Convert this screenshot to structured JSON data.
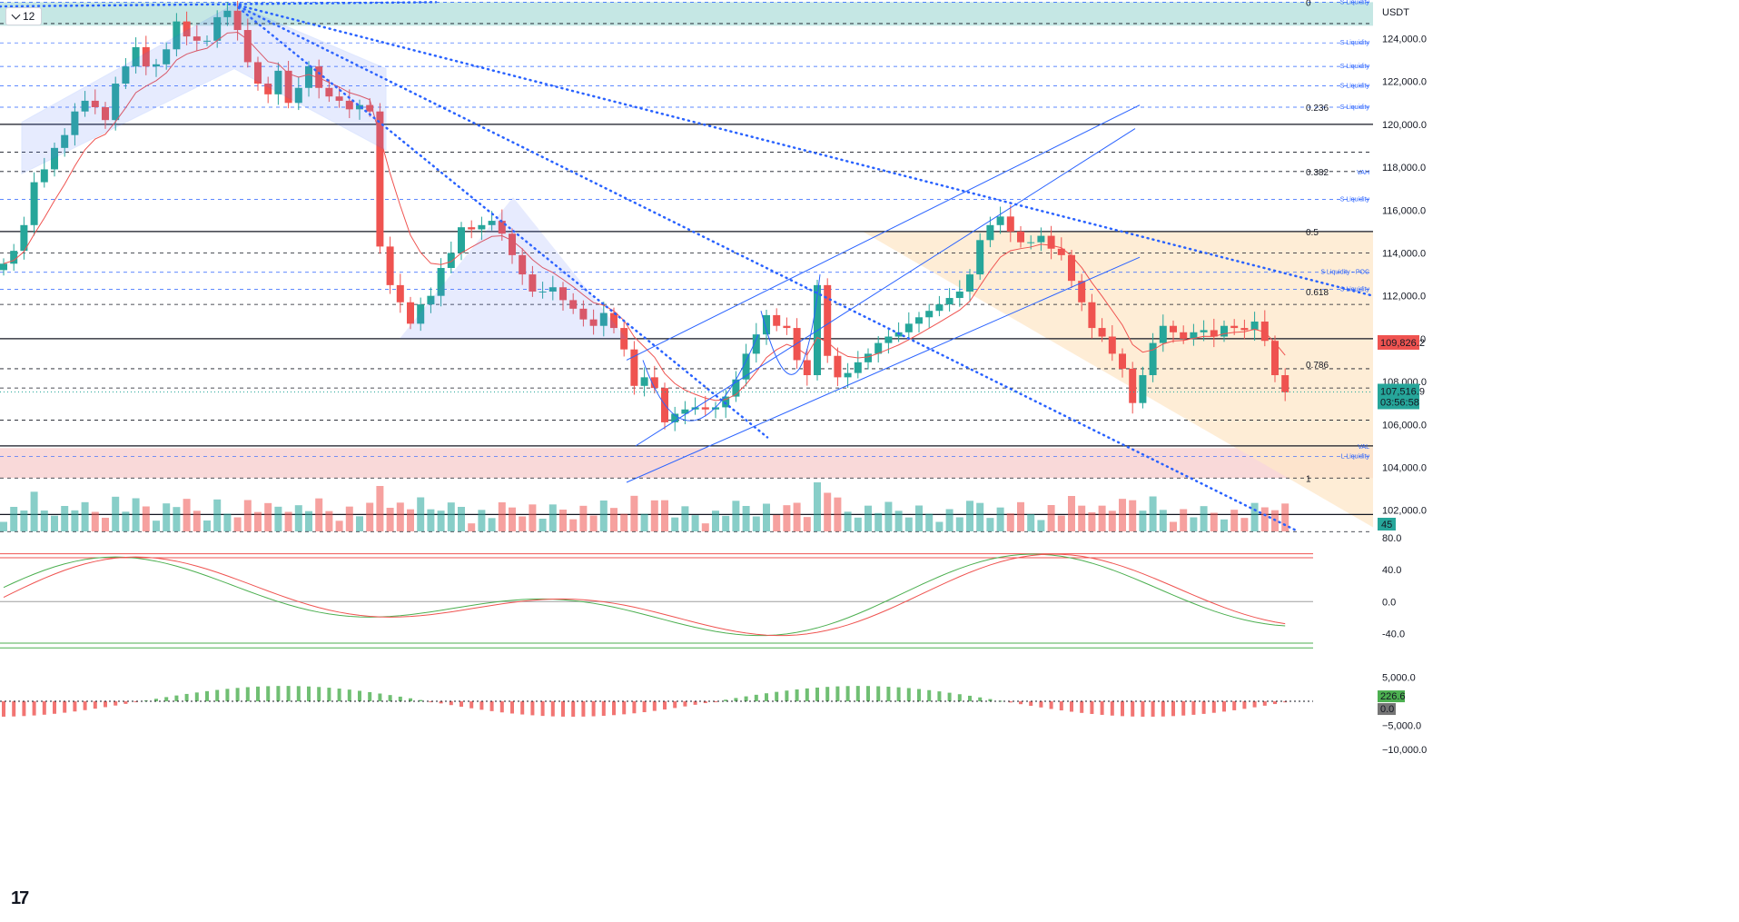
{
  "toolbar": {
    "interval": "12"
  },
  "logo": {
    "text": "17"
  },
  "price_axis": {
    "currency": "USDT"
  },
  "colors": {
    "up": "#26a69a",
    "down": "#ef5350",
    "accent_blue": "#2962ff",
    "liquidity_zone_top": "#b2dfdb",
    "liquidity_zone_bottom": "#f8d0d0",
    "value_area": "#fde7c8"
  },
  "chart_data": [
    {
      "type": "candlestick",
      "title": "",
      "symbol_quote": "USDT",
      "ylim": [
        100800,
        125800
      ],
      "y_ticks": [
        124000,
        122000,
        120000,
        118000,
        116000,
        114000,
        112000,
        110000,
        108000,
        106000,
        104000,
        102000
      ],
      "y_tick_labels": [
        "124,000.0",
        "122,000.0",
        "120,000.0",
        "118,000.0",
        "116,000.0",
        "114,000.0",
        "112,000.0",
        "110,000.0",
        "108,000.0",
        "106,000.0",
        "104,000.0",
        "102,000.0"
      ],
      "current_price": {
        "value": 107516.9,
        "label": "107,516.9",
        "countdown": "03:56:58"
      },
      "marked_level": {
        "value": 109826.2,
        "label": "109,826.2"
      },
      "volume_badge": "45",
      "fib_levels": [
        {
          "label": "0",
          "value": 125700
        },
        {
          "label": "0.236",
          "value": 120800
        },
        {
          "label": "0.382",
          "value": 117800
        },
        {
          "label": "0.5",
          "value": 115000
        },
        {
          "label": "0.618",
          "value": 112200
        },
        {
          "label": "0.786",
          "value": 108800
        },
        {
          "label": "1",
          "value": 103500
        }
      ],
      "key_levels": [
        {
          "label": "VAH",
          "value": 117800
        },
        {
          "label": "VAL",
          "value": 105000
        }
      ],
      "liquidity_levels": [
        {
          "label": "S Liquidity",
          "value": 125700
        },
        {
          "label": "S Liquidity",
          "value": 123800
        },
        {
          "label": "S Liquidity",
          "value": 122700
        },
        {
          "label": "S Liquidity",
          "value": 121800
        },
        {
          "label": "S Liquidity",
          "value": 120800
        },
        {
          "label": "S Liquidity",
          "value": 116500
        },
        {
          "label": "S Liquidity - POC",
          "value": 113100
        },
        {
          "label": "S Liquidity",
          "value": 112300
        },
        {
          "label": "L Liquidity",
          "value": 104500
        }
      ],
      "closes": [
        113500,
        114100,
        115300,
        117300,
        117900,
        118900,
        119500,
        120600,
        121100,
        120800,
        120200,
        121900,
        122700,
        123600,
        122700,
        122800,
        123500,
        124800,
        124100,
        123900,
        123900,
        125000,
        125300,
        124400,
        122900,
        121900,
        121400,
        122500,
        121000,
        121700,
        122700,
        121700,
        121300,
        121100,
        120700,
        120900,
        120600,
        114300,
        112500,
        111700,
        110700,
        111600,
        112000,
        113300,
        114000,
        115200,
        115100,
        115300,
        115500,
        114900,
        113900,
        113000,
        112200,
        112200,
        112400,
        111800,
        111400,
        110900,
        110600,
        111200,
        110500,
        109500,
        107800,
        108200,
        107700,
        106100,
        106500,
        106700,
        106800,
        106700,
        106800,
        107300,
        108100,
        109300,
        110200,
        111100,
        110600,
        110500,
        109000,
        108300,
        112500,
        109200,
        108200,
        108400,
        108900,
        109300,
        109800,
        110100,
        110300,
        110700,
        111000,
        111300,
        111600,
        111900,
        112200,
        113000,
        114600,
        115300,
        115700,
        115000,
        114500,
        114500,
        114800,
        114200,
        113900,
        112700,
        111700,
        110500,
        110100,
        109300,
        108600,
        107000,
        108300,
        109800,
        110600,
        110300,
        110000,
        110300,
        110400,
        110100,
        110600,
        110500,
        110400,
        110800,
        109900,
        108300,
        107500
      ],
      "oscillator_1": {
        "ylim": [
          -60,
          80
        ],
        "ticks": [
          "80.0",
          "40.0",
          "0.0",
          "-40.0"
        ],
        "levels": [
          60,
          55,
          -52,
          -58
        ]
      },
      "oscillator_2": {
        "ylim": [
          -10000,
          7000
        ],
        "ticks": [
          "5,000.0",
          "−5,000.0",
          "−10,000.0"
        ],
        "value_label": "226.6",
        "zero_label": "0.0"
      }
    }
  ]
}
